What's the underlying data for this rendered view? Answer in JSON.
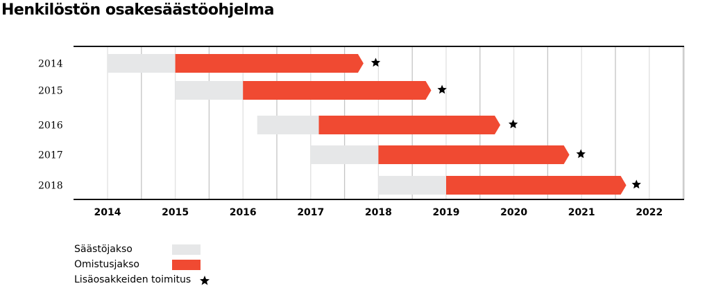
{
  "chart_data": {
    "type": "gantt-bar",
    "title": "Henkilöstön osakesäästöohjelma",
    "xlabel": "",
    "ylabel": "",
    "xlim": [
      2013.5,
      2022.5
    ],
    "x_ticks": [
      "2014",
      "2015",
      "2016",
      "2017",
      "2018",
      "2019",
      "2020",
      "2021",
      "2022"
    ],
    "grid": true,
    "rows": [
      {
        "label": "2014",
        "saving": [
          2014.0,
          2015.0
        ],
        "holding": [
          2015.0,
          2017.78
        ],
        "delivery": 2017.96
      },
      {
        "label": "2015",
        "saving": [
          2015.0,
          2016.0
        ],
        "holding": [
          2016.0,
          2018.78
        ],
        "delivery": 2018.94
      },
      {
        "label": "2016",
        "saving": [
          2016.21,
          2017.12
        ],
        "holding": [
          2017.12,
          2019.8
        ],
        "delivery": 2019.99
      },
      {
        "label": "2017",
        "saving": [
          2017.0,
          2018.0
        ],
        "holding": [
          2018.0,
          2020.82
        ],
        "delivery": 2020.99
      },
      {
        "label": "2018",
        "saving": [
          2018.0,
          2019.0
        ],
        "holding": [
          2019.0,
          2021.66
        ],
        "delivery": 2021.81
      }
    ],
    "legend": [
      {
        "label": "Säästöjakso",
        "color": "#e6e7e8"
      },
      {
        "label": "Omistusjakso",
        "color": "#f04a32"
      },
      {
        "label": "Lisäosakkeiden toimitus",
        "icon": "star-icon"
      }
    ],
    "legend_position": "bottom-left"
  }
}
